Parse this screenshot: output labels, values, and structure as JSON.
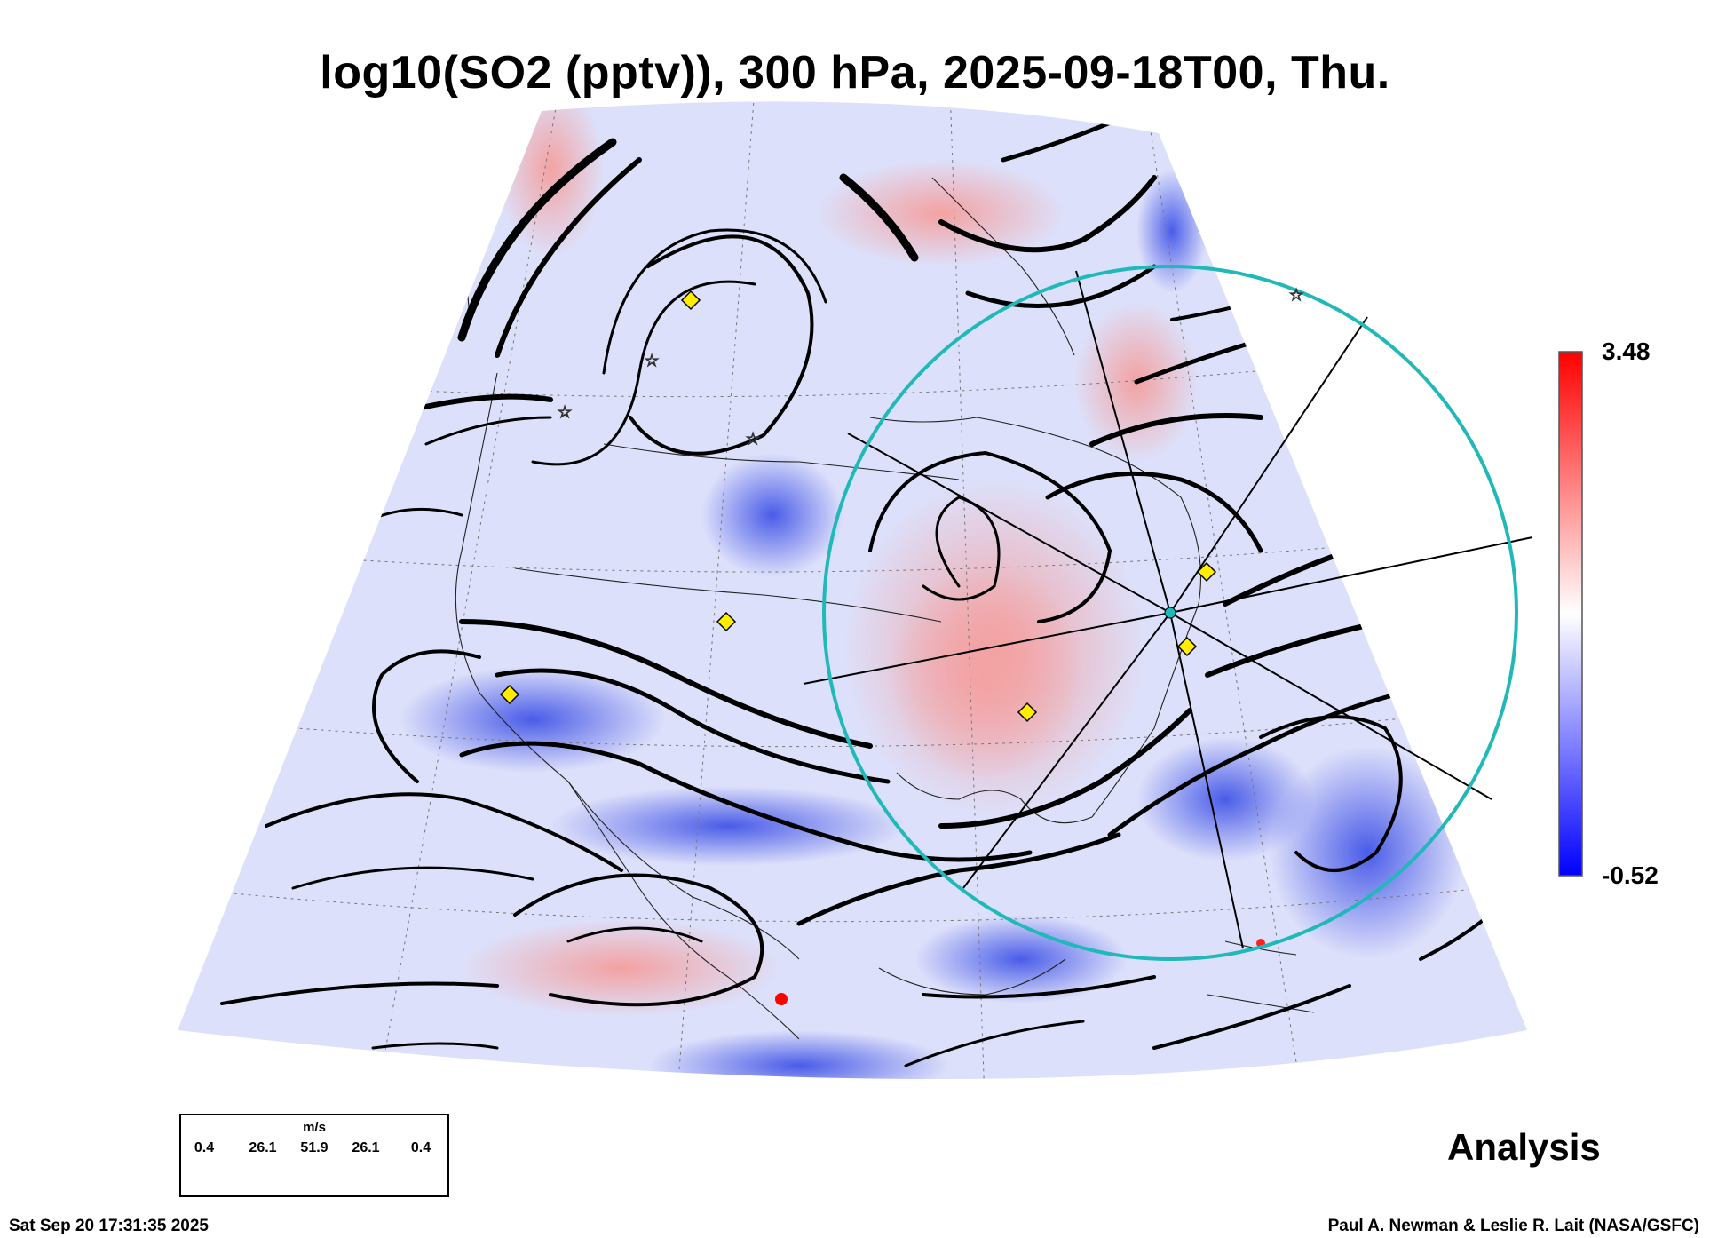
{
  "title": "log10(SO2 (pptv)), 300 hPa, 2025-09-18T00, Thu.",
  "colorbar": {
    "max_label": "3.48",
    "min_label": "-0.52",
    "colors": {
      "high": "#ff0000",
      "mid": "#ffffff",
      "low": "#0000ff"
    }
  },
  "wind_legend": {
    "unit": "m/s",
    "values": [
      "0.4",
      "26.1",
      "51.9",
      "26.1",
      "0.4"
    ]
  },
  "analysis_label": "Analysis",
  "footer": {
    "timestamp": "Sat Sep 20 17:31:35 2025",
    "credit": "Paul A. Newman & Leslie R. Lait (NASA/GSFC)"
  },
  "markers": {
    "diamond_color": "#ffee00",
    "circle_color": "#20b8b8",
    "icons": [
      "diamond-marker-icon",
      "star-marker-icon",
      "range-circle-icon"
    ]
  }
}
